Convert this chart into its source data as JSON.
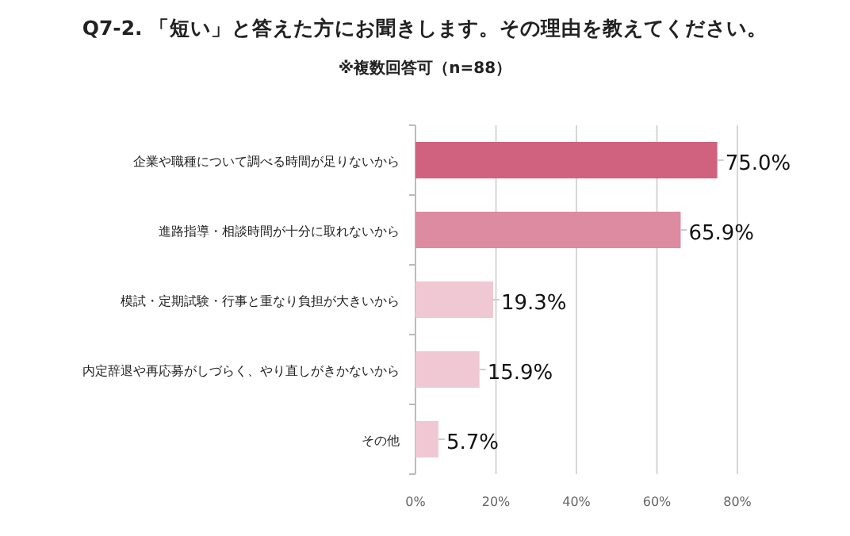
{
  "chart_data": {
    "type": "bar",
    "orientation": "horizontal",
    "title": "Q7-2. 「短い」と答えた方にお聞きします。その理由を教えてください。",
    "subtitle": "※複数回答可（n=88）",
    "categories": [
      "企業や職種について調べる時間が足りないから",
      "進路指導・相談時間が十分に取れないから",
      "模試・定期試験・行事と重なり負担が大きいから",
      "内定辞退や再応募がしづらく、やり直しがきかないから",
      "その他"
    ],
    "values": [
      75.0,
      65.9,
      19.3,
      15.9,
      5.7
    ],
    "colors": [
      "#d0627f",
      "#dc8ba1",
      "#f0c8d4",
      "#f0c8d4",
      "#f0c8d4"
    ],
    "value_labels": [
      "75.0%",
      "65.9%",
      "19.3%",
      "15.9%",
      "5.7%"
    ],
    "xlim": [
      0,
      80
    ],
    "xticks": [
      {
        "value": 0,
        "label": "0%"
      },
      {
        "value": 20,
        "label": "20%"
      },
      {
        "value": 40,
        "label": "40%"
      },
      {
        "value": 60,
        "label": "60%"
      },
      {
        "value": 80,
        "label": "80%"
      }
    ],
    "grid": "x"
  }
}
